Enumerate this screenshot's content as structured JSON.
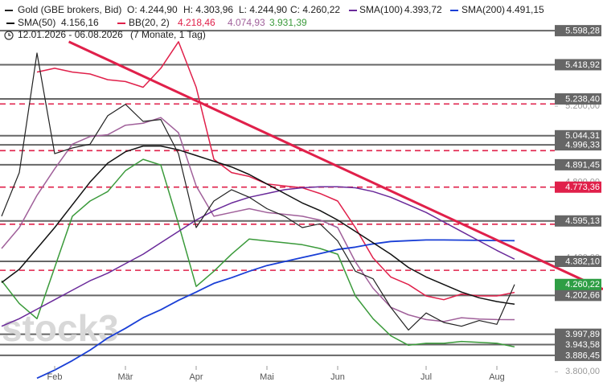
{
  "chart_data": {
    "type": "line",
    "header": {
      "ohlc_labels": [
        "O: 4.244,90",
        "H: 4.303,96",
        "L: 4.244,90",
        "C: 4.260,22"
      ],
      "range": "12.01.2026 - 06.08.2026",
      "duration": "(7 Monate, 1 Tag)"
    },
    "watermark": "stock3",
    "categories": [
      null,
      null,
      null,
      "Feb",
      null,
      null,
      null,
      "Mär",
      null,
      null,
      null,
      "Apr",
      null,
      null,
      null,
      "Mai",
      null,
      null,
      null,
      "Jun",
      null,
      null,
      null,
      null,
      "Jul",
      null,
      null,
      null,
      "Aug",
      null
    ],
    "ylim": [
      3725,
      5760
    ],
    "yticks": [
      {
        "value": 3800,
        "label": "3.800,00"
      },
      {
        "value": 4400,
        "label": "4.400,00"
      },
      {
        "value": 4800,
        "label": "4.800,00"
      },
      {
        "value": 5200,
        "label": "5.200,00"
      }
    ],
    "series": [
      {
        "name": "Gold (GBE brokers, Bid)",
        "color": "#222222",
        "width": 1.2,
        "values": [
          4620,
          4850,
          5480,
          4950,
          4980,
          5000,
          5150,
          5210,
          5120,
          5130,
          4950,
          4560,
          4700,
          4760,
          4720,
          4660,
          4620,
          4560,
          4580,
          4490,
          4330,
          4290,
          4140,
          4020,
          4110,
          4060,
          4040,
          4070,
          4050,
          4260.22
        ],
        "value_labels": [
          null,
          null,
          null,
          null,
          null,
          null,
          null,
          null,
          null,
          null,
          null,
          null,
          null,
          null,
          null,
          null,
          null,
          null,
          null,
          null,
          null,
          null,
          null,
          null,
          null,
          null,
          null,
          null,
          null,
          "4.260,22"
        ],
        "label_color": "#2e9e44"
      },
      {
        "name": "SMA(50)",
        "color": "#111111",
        "width": 1.5,
        "value_label": "4.156,16",
        "values": [
          4270,
          4340,
          4450,
          4560,
          4680,
          4800,
          4900,
          4960,
          4990,
          4990,
          4970,
          4940,
          4910,
          4880,
          4840,
          4790,
          4740,
          4690,
          4650,
          4600,
          4540,
          4480,
          4420,
          4350,
          4300,
          4260,
          4220,
          4190,
          4170,
          4156.16
        ]
      },
      {
        "name": "SMA(100)",
        "color": "#6a2a9a",
        "width": 1.5,
        "value_label": "4.393,72",
        "values": [
          4040,
          4080,
          4130,
          4180,
          4230,
          4280,
          4320,
          4370,
          4420,
          4480,
          4540,
          4600,
          4650,
          4690,
          4720,
          4740,
          4760,
          4770,
          4775,
          4775,
          4770,
          4750,
          4720,
          4680,
          4640,
          4590,
          4540,
          4490,
          4440,
          4393.72
        ]
      },
      {
        "name": "SMA(200)",
        "color": "#1a3fd6",
        "width": 1.8,
        "value_label": "4.491,15",
        "values": [
          null,
          null,
          3766,
          3809,
          3859,
          3914,
          3978,
          4029,
          4085,
          4127,
          4177,
          4220,
          4266,
          4296,
          4330,
          4360,
          4381,
          4402,
          4423,
          4445,
          4457,
          4474,
          4487,
          4491,
          4495,
          4495,
          4494,
          4493,
          4492,
          4491.15
        ]
      }
    ],
    "bollinger": {
      "name": "BB(20, 2)",
      "marker_color": "#e0204a",
      "bands": [
        {
          "color": "#e0204a",
          "value_label": "4.218,46",
          "values": [
            null,
            null,
            5380,
            5400,
            5380,
            5370,
            5340,
            5330,
            5300,
            5400,
            5540,
            5300,
            4920,
            4850,
            4830,
            4790,
            4780,
            4770,
            4740,
            4700,
            4560,
            4400,
            4300,
            4260,
            4200,
            4180,
            4210,
            4200,
            4200,
            4218.46
          ]
        },
        {
          "color": "#a0609a",
          "value_label": "4.074,93",
          "values": [
            4450,
            4560,
            4730,
            4870,
            5000,
            5040,
            5050,
            5100,
            5110,
            5140,
            5060,
            4780,
            4620,
            4640,
            4660,
            4640,
            4630,
            4620,
            4600,
            4560,
            4380,
            4240,
            4140,
            4100,
            4075,
            4065,
            4085,
            4078,
            4075,
            4074.93
          ]
        },
        {
          "color": "#3a9a3a",
          "value_label": "3.931,39",
          "values": [
            4280,
            4160,
            4080,
            4350,
            4620,
            4700,
            4750,
            4860,
            4920,
            4890,
            4580,
            4250,
            4330,
            4420,
            4500,
            4490,
            4480,
            4470,
            4450,
            4420,
            4200,
            4080,
            3990,
            3940,
            3950,
            3950,
            3960,
            3955,
            3950,
            3931.39
          ]
        }
      ]
    },
    "levels": [
      {
        "value": 5598.28,
        "label": "5.598,28",
        "color": "#666666"
      },
      {
        "value": 5418.92,
        "label": "5.418,92",
        "color": "#666666"
      },
      {
        "value": 5238.4,
        "label": "5.238,40",
        "color": "#666666"
      },
      {
        "value": 5212,
        "color": "#e0204a",
        "dash": true
      },
      {
        "value": 5044.31,
        "label": "5.044,31",
        "color": "#666666"
      },
      {
        "value": 4996.33,
        "label": "4.996,33",
        "color": "#666666"
      },
      {
        "value": 4966,
        "color": "#e0204a",
        "dash": true
      },
      {
        "value": 4891.45,
        "label": "4.891,45",
        "color": "#666666"
      },
      {
        "value": 4773.36,
        "label": "4.773,36",
        "color": "#e0204a",
        "dash": true
      },
      {
        "value": 4595.13,
        "label": "4.595,13",
        "color": "#666666"
      },
      {
        "value": 4578,
        "color": "#e0204a",
        "dash": true
      },
      {
        "value": 4382.1,
        "label": "4.382,10",
        "color": "#666666"
      },
      {
        "value": 4335,
        "color": "#e0204a",
        "dash": true
      },
      {
        "value": 4202.66,
        "label": "4.202,66",
        "color": "#666666"
      },
      {
        "value": 3997.89,
        "label": "3.997,89",
        "color": "#666666"
      },
      {
        "value": 3943.58,
        "label": "3.943,58",
        "color": "#666666"
      },
      {
        "value": 3886.45,
        "label": "3.886,45",
        "color": "#666666"
      }
    ],
    "trendline": {
      "color": "#e0204a",
      "points": [
        [
          3.8,
          5540
        ],
        [
          34,
          4235
        ]
      ]
    }
  }
}
